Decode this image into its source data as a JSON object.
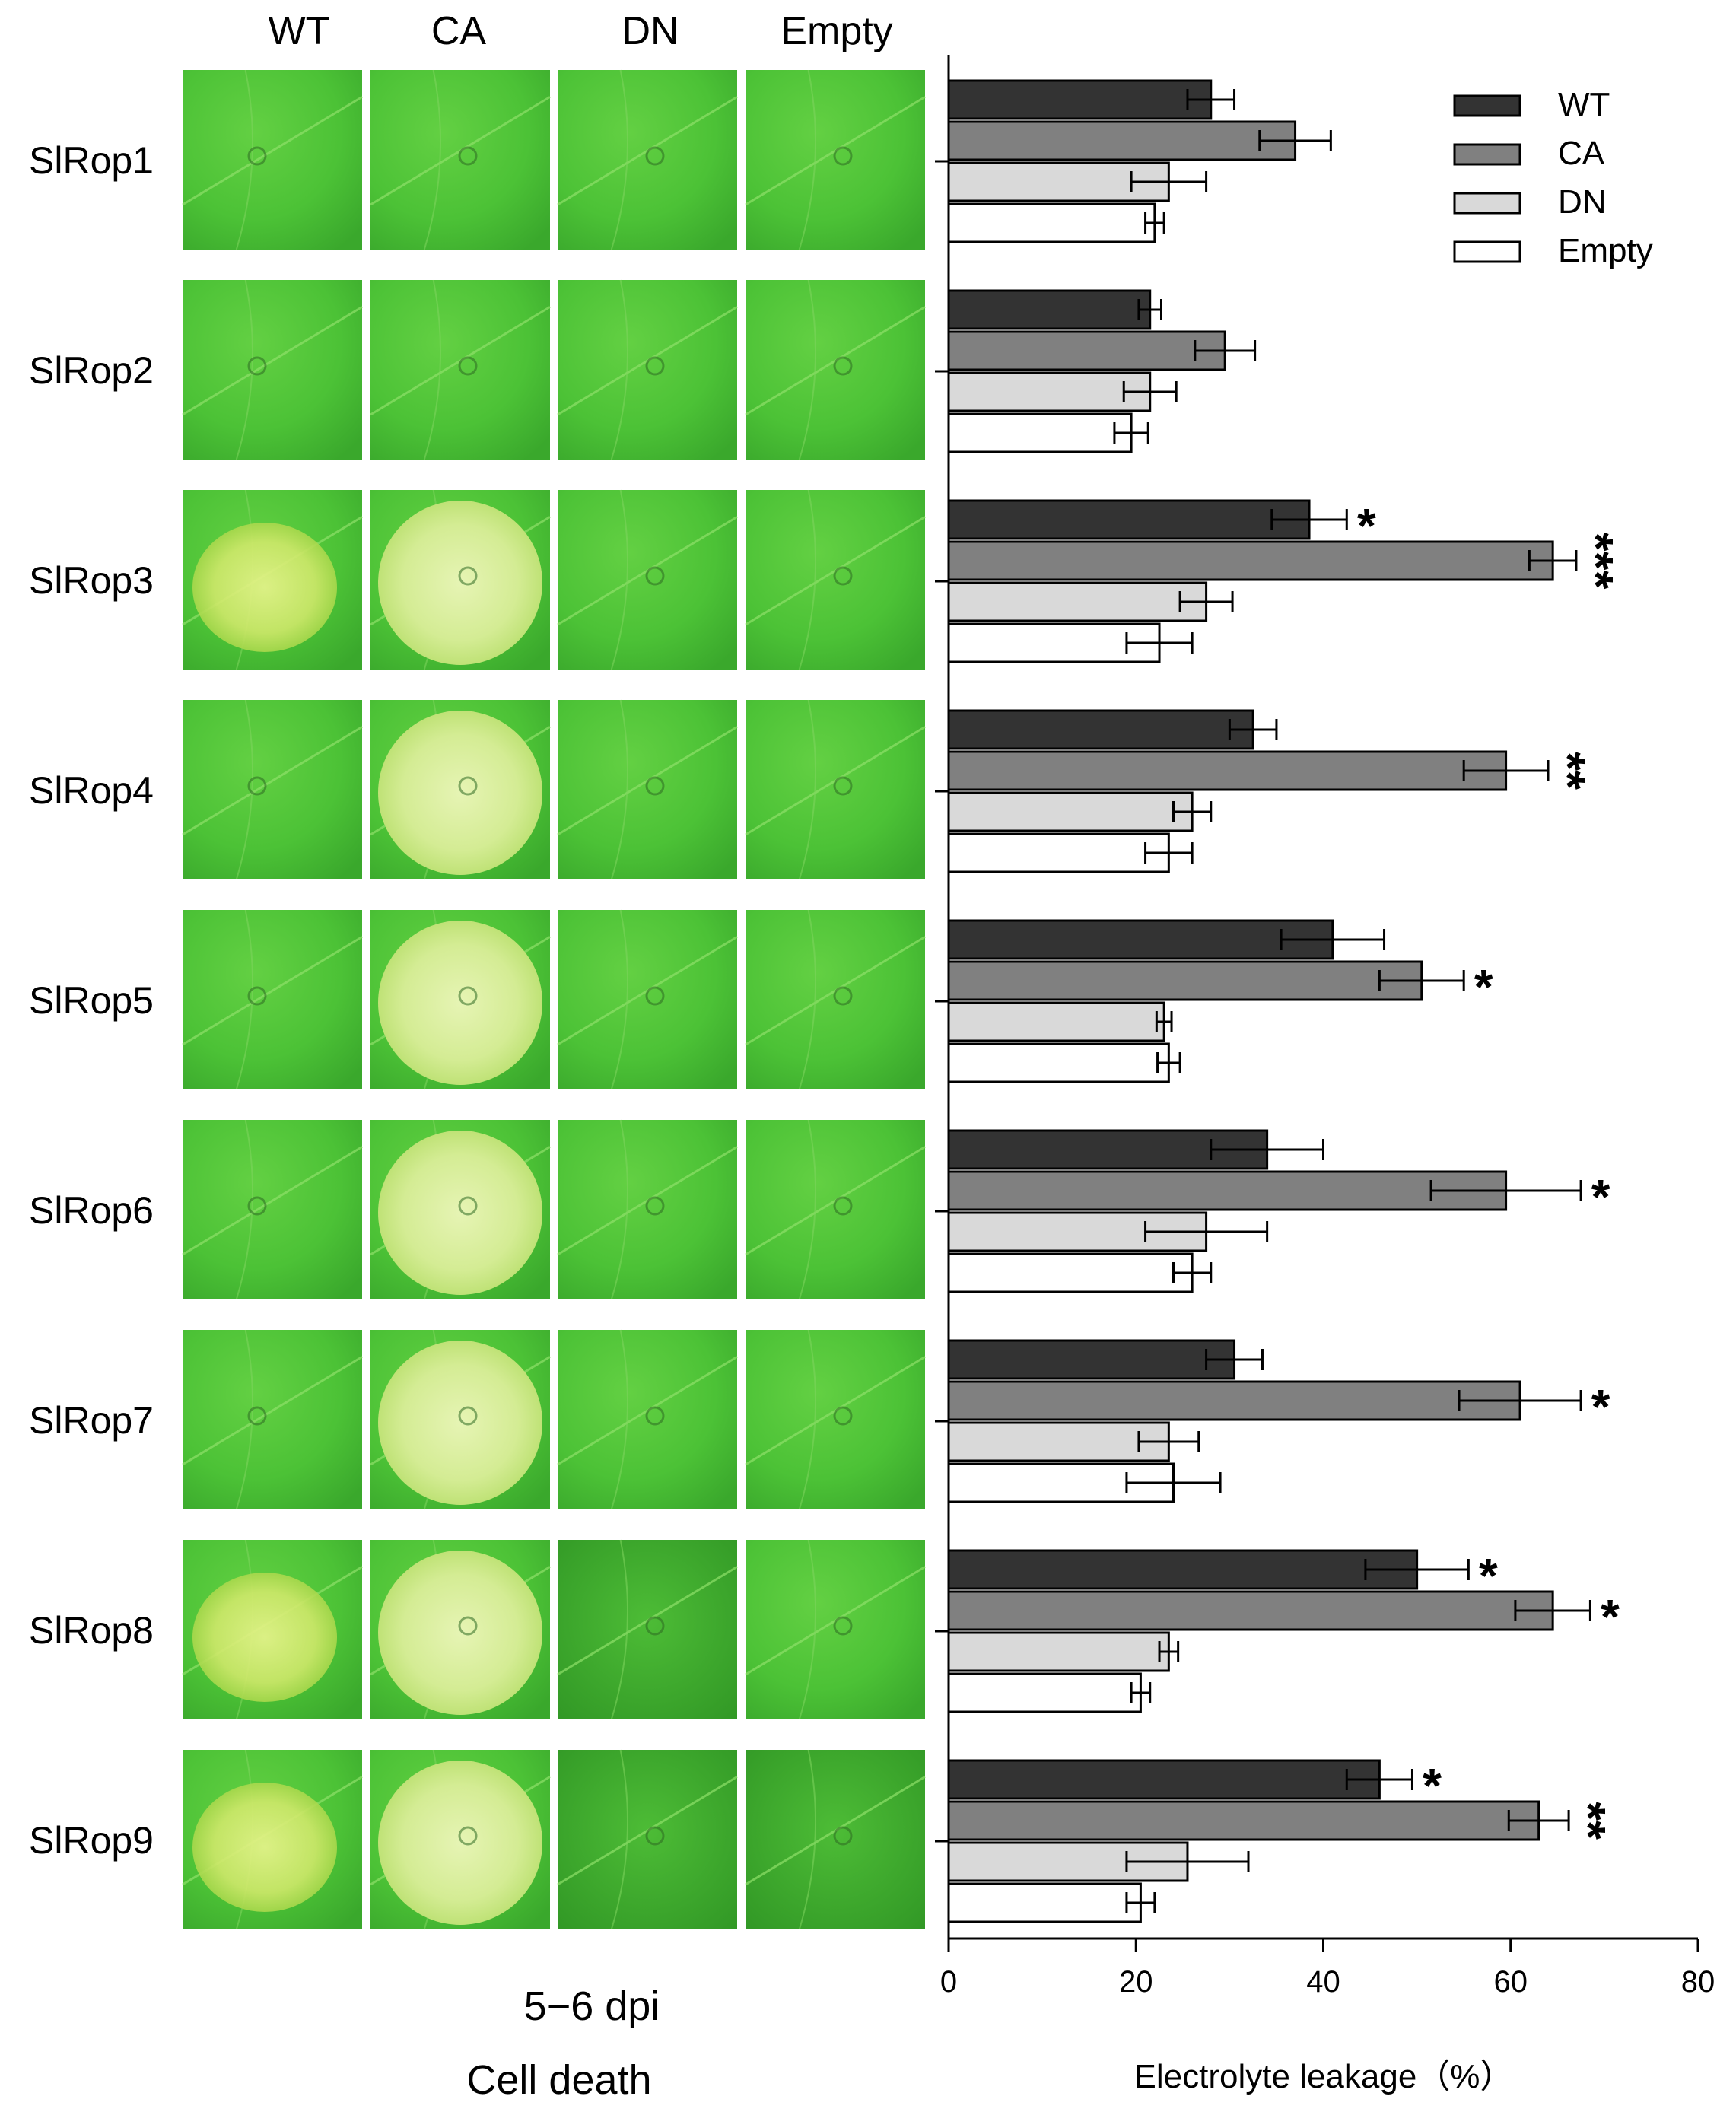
{
  "panel_left": {
    "column_headers": [
      "WT",
      "CA",
      "DN",
      "Empty"
    ],
    "row_labels": [
      "SlRop1",
      "SlRop2",
      "SlRop3",
      "SlRop4",
      "SlRop5",
      "SlRop6",
      "SlRop7",
      "SlRop8",
      "SlRop9"
    ],
    "caption_time": "5−6 dpi",
    "caption_title": "Cell death",
    "colors": {
      "leaf_green": "#52c83a",
      "leaf_pale": "#d8ef9c",
      "leaf_dark": "#3aa82c"
    }
  },
  "chart_data": {
    "type": "bar",
    "orientation": "horizontal",
    "title": "",
    "xlabel": "Electrolyte leakage（%）",
    "ylabel": "",
    "xlim": [
      0,
      80
    ],
    "xticks": [
      0,
      20,
      40,
      60,
      80
    ],
    "categories": [
      "SlRop1",
      "SlRop2",
      "SlRop3",
      "SlRop4",
      "SlRop5",
      "SlRop6",
      "SlRop7",
      "SlRop8",
      "SlRop9"
    ],
    "legend_position": "top-right",
    "grid": false,
    "series": [
      {
        "name": "WT",
        "color": "#333333",
        "values": [
          28,
          21.5,
          38.5,
          32.5,
          41,
          34,
          30.5,
          50,
          46
        ],
        "errors": [
          2.5,
          1.2,
          4,
          2.5,
          5.5,
          6,
          3,
          5.5,
          3.5
        ],
        "significance": [
          "",
          "",
          "*",
          "",
          "",
          "",
          "",
          "*",
          "*"
        ]
      },
      {
        "name": "CA",
        "color": "#808080",
        "values": [
          37,
          29.5,
          64.5,
          59.5,
          50.5,
          59.5,
          61,
          64.5,
          63
        ],
        "errors": [
          3.8,
          3.2,
          2.5,
          4.5,
          4.5,
          8,
          6.5,
          4,
          3.2
        ],
        "significance": [
          "",
          "",
          "***",
          "**",
          "*",
          "*",
          "*",
          "*",
          "**"
        ]
      },
      {
        "name": "DN",
        "color": "#d9d9d9",
        "values": [
          23.5,
          21.5,
          27.5,
          26,
          23,
          27.5,
          23.5,
          23.5,
          25.5
        ],
        "errors": [
          4,
          2.8,
          2.8,
          2,
          0.8,
          6.5,
          3.2,
          1,
          6.5
        ],
        "significance": [
          "",
          "",
          "",
          "",
          "",
          "",
          "",
          "",
          ""
        ]
      },
      {
        "name": "Empty",
        "color": "#ffffff",
        "values": [
          22,
          19.5,
          22.5,
          23.5,
          23.5,
          26,
          24,
          20.5,
          20.5
        ],
        "errors": [
          1,
          1.8,
          3.5,
          2.5,
          1.2,
          2,
          5,
          1,
          1.5
        ],
        "significance": [
          "",
          "",
          "",
          "",
          "",
          "",
          "",
          "",
          ""
        ]
      }
    ]
  }
}
